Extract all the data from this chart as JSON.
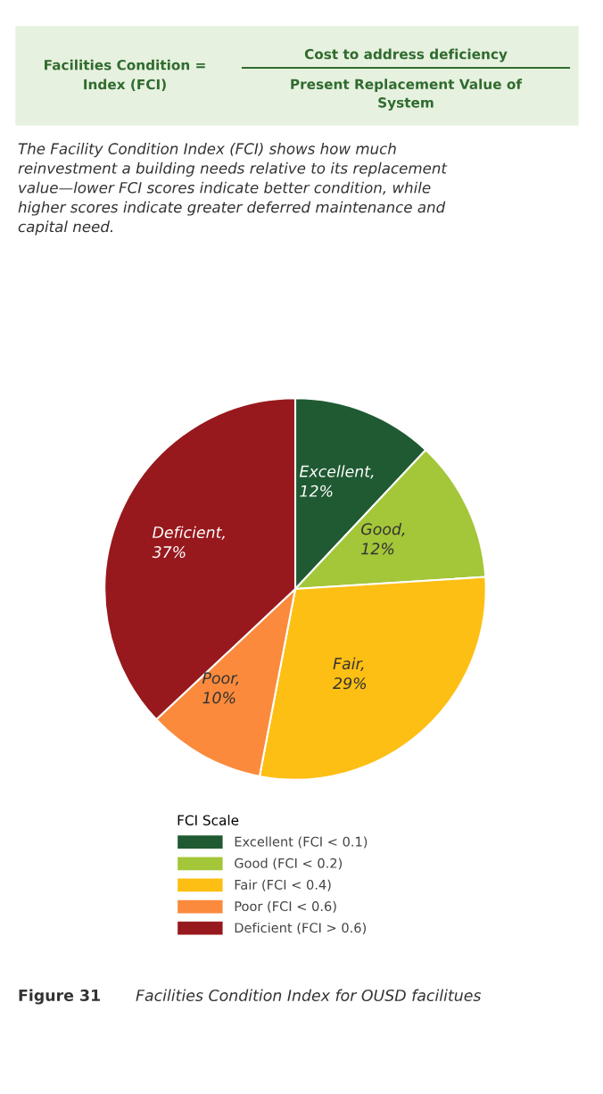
{
  "chart_data": {
    "type": "pie",
    "categories": [
      "Excellent (FCI < 0.1)",
      "Good (FCI < 0.2)",
      "Fair (FCI < 0.4)",
      "Poor (FCI < 0.6)",
      "Deficient (FCI > 0.6)"
    ],
    "values": [
      12,
      12,
      29,
      10,
      37
    ],
    "value_labels": [
      "Excellent,\n12%",
      "Good,\n12%",
      "Fair,\n29%",
      "Poor,\n10%",
      "Deficient,\n37%"
    ],
    "colors": [
      "#1f5a32",
      "#a4c639",
      "#fdbf14",
      "#fb8a3c",
      "#97191d"
    ],
    "legend_title": "FCI Scale",
    "legend": "bottom",
    "annotations": [
      "Facilities Condition =\nIndex (FCI)",
      "Cost to address deficiency",
      "Present Replacement Value of\nSystem",
      "The Facility Condition Index (FCI) shows how much\nreinvestment a building needs relative to its replacement\nvalue—lower FCI scores indicate better condition, while\nhigher scores indicate greater deferred maintenance and\ncapital need.",
      "Figure 31",
      "Facilities Condition Index for OUSD facilitues"
    ]
  }
}
